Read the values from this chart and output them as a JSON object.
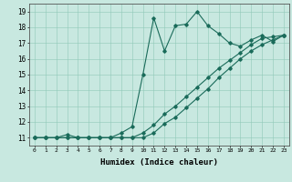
{
  "xlabel": "Humidex (Indice chaleur)",
  "bg_color": "#c8e8e0",
  "line_color": "#1a6b5a",
  "xlim": [
    -0.5,
    23.5
  ],
  "ylim": [
    10.5,
    19.5
  ],
  "xticks": [
    0,
    1,
    2,
    3,
    4,
    5,
    6,
    7,
    8,
    9,
    10,
    11,
    12,
    13,
    14,
    15,
    16,
    17,
    18,
    19,
    20,
    21,
    22,
    23
  ],
  "yticks": [
    11,
    12,
    13,
    14,
    15,
    16,
    17,
    18,
    19
  ],
  "line1_x": [
    0,
    1,
    2,
    3,
    4,
    5,
    6,
    7,
    8,
    9,
    10,
    11,
    12,
    13,
    14,
    15,
    16,
    17,
    18,
    19,
    20,
    21,
    22,
    23
  ],
  "line1_y": [
    11,
    11,
    11,
    11.2,
    11,
    11,
    11,
    11,
    11.3,
    11.7,
    15.0,
    18.6,
    16.5,
    18.1,
    18.2,
    19.0,
    18.1,
    17.6,
    17.0,
    16.8,
    17.2,
    17.5,
    17.1,
    17.5
  ],
  "line2_x": [
    0,
    1,
    2,
    3,
    4,
    5,
    6,
    7,
    8,
    9,
    10,
    11,
    12,
    13,
    14,
    15,
    16,
    17,
    18,
    19,
    20,
    21,
    22,
    23
  ],
  "line2_y": [
    11,
    11,
    11,
    11,
    11,
    11,
    11,
    11,
    11,
    11,
    11.3,
    11.8,
    12.5,
    13.0,
    13.6,
    14.2,
    14.8,
    15.4,
    15.9,
    16.4,
    16.9,
    17.3,
    17.4,
    17.5
  ],
  "line3_x": [
    0,
    1,
    2,
    3,
    4,
    5,
    6,
    7,
    8,
    9,
    10,
    11,
    12,
    13,
    14,
    15,
    16,
    17,
    18,
    19,
    20,
    21,
    22,
    23
  ],
  "line3_y": [
    11,
    11,
    11,
    11,
    11,
    11,
    11,
    11,
    11,
    11,
    11,
    11.3,
    11.9,
    12.3,
    12.9,
    13.5,
    14.1,
    14.8,
    15.4,
    16.0,
    16.5,
    16.9,
    17.2,
    17.5
  ]
}
